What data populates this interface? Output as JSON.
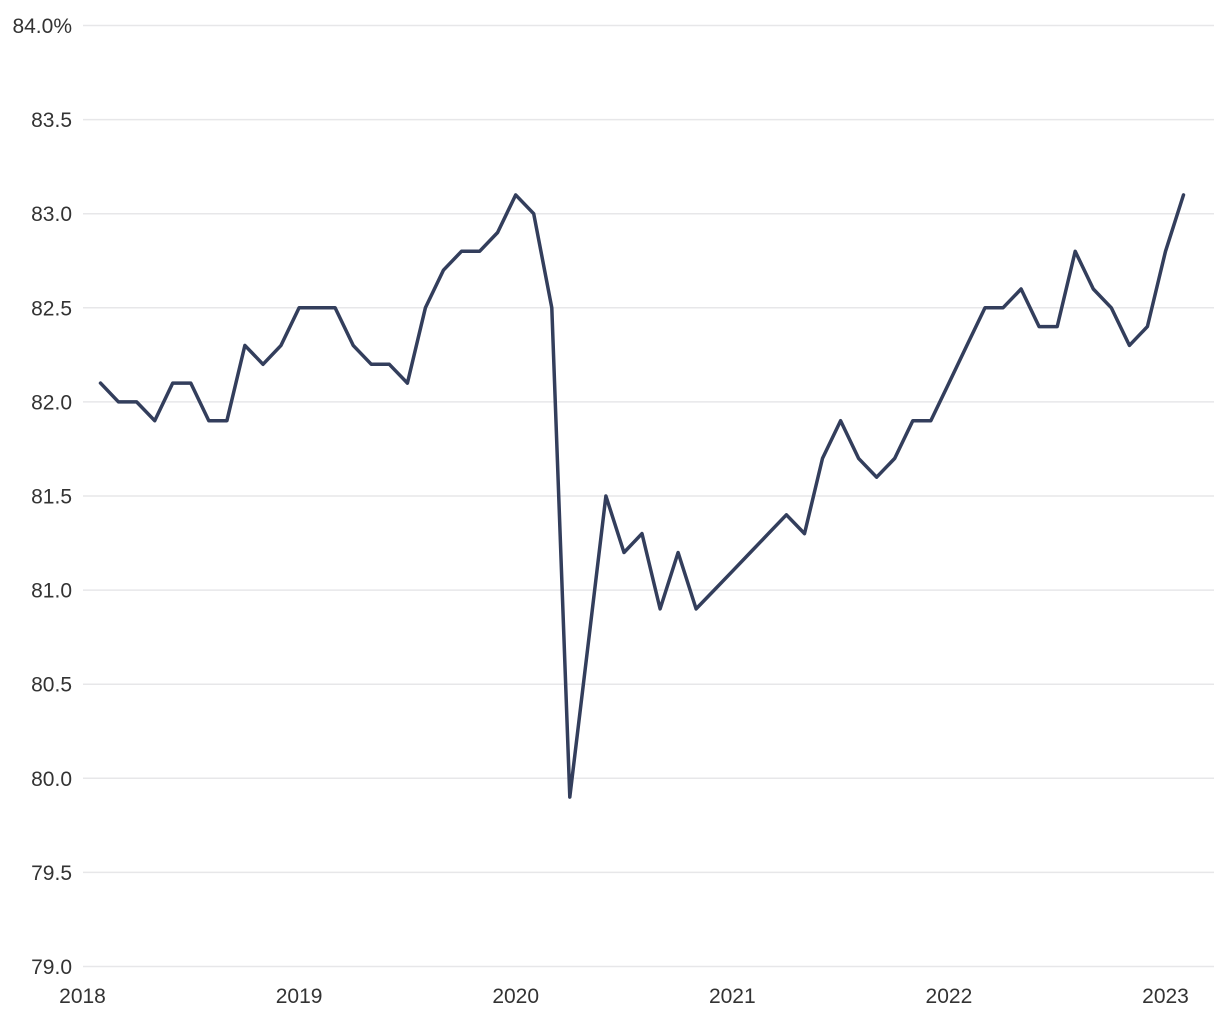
{
  "chart_data": {
    "type": "line",
    "title": "",
    "subtitle": "",
    "legend": "none",
    "grid": "horizontal",
    "background_color": "#FFFFFF",
    "line_color": "#333E5C",
    "grid_color": "#E7E7E9",
    "text_color": "#333333",
    "ylim": [
      79.0,
      84.0
    ],
    "y_ticks": [
      79.0,
      79.5,
      80.0,
      80.5,
      81.0,
      81.5,
      82.0,
      82.5,
      83.0,
      83.5,
      84.0
    ],
    "y_tick_labels": [
      "79.0",
      "79.5",
      "80.0",
      "80.5",
      "81.0",
      "81.5",
      "82.0",
      "82.5",
      "83.0",
      "83.5",
      "84.0%"
    ],
    "x_tick_labels": [
      "2018",
      "2019",
      "2020",
      "2021",
      "2022",
      "2023"
    ],
    "x_tick_years": [
      2018,
      2019,
      2020,
      2021,
      2022,
      2023
    ],
    "x": [
      "2018-02",
      "2018-03",
      "2018-04",
      "2018-05",
      "2018-06",
      "2018-07",
      "2018-08",
      "2018-09",
      "2018-10",
      "2018-11",
      "2018-12",
      "2019-01",
      "2019-02",
      "2019-03",
      "2019-04",
      "2019-05",
      "2019-06",
      "2019-07",
      "2019-08",
      "2019-09",
      "2019-10",
      "2019-11",
      "2019-12",
      "2020-01",
      "2020-02",
      "2020-03",
      "2020-04",
      "2020-05",
      "2020-06",
      "2020-07",
      "2020-08",
      "2020-09",
      "2020-10",
      "2020-11",
      "2020-12",
      "2021-01",
      "2021-02",
      "2021-03",
      "2021-04",
      "2021-05",
      "2021-06",
      "2021-07",
      "2021-08",
      "2021-09",
      "2021-10",
      "2021-11",
      "2021-12",
      "2022-01",
      "2022-02",
      "2022-03",
      "2022-04",
      "2022-05",
      "2022-06",
      "2022-07",
      "2022-08",
      "2022-09",
      "2022-10",
      "2022-11",
      "2022-12",
      "2023-01",
      "2023-02"
    ],
    "y": [
      82.1,
      82.0,
      82.0,
      81.9,
      82.1,
      82.1,
      81.9,
      81.9,
      82.3,
      82.2,
      82.3,
      82.5,
      82.5,
      82.5,
      82.3,
      82.2,
      82.2,
      82.1,
      82.5,
      82.7,
      82.8,
      82.8,
      82.9,
      83.1,
      83.0,
      82.5,
      79.9,
      80.7,
      81.5,
      81.2,
      81.3,
      80.9,
      81.2,
      80.9,
      81.0,
      81.1,
      81.2,
      81.3,
      81.4,
      81.3,
      81.7,
      81.9,
      81.7,
      81.6,
      81.7,
      81.9,
      81.9,
      82.1,
      82.3,
      82.5,
      82.5,
      82.6,
      82.4,
      82.4,
      82.8,
      82.6,
      82.5,
      82.3,
      82.4,
      82.8,
      83.1
    ]
  }
}
